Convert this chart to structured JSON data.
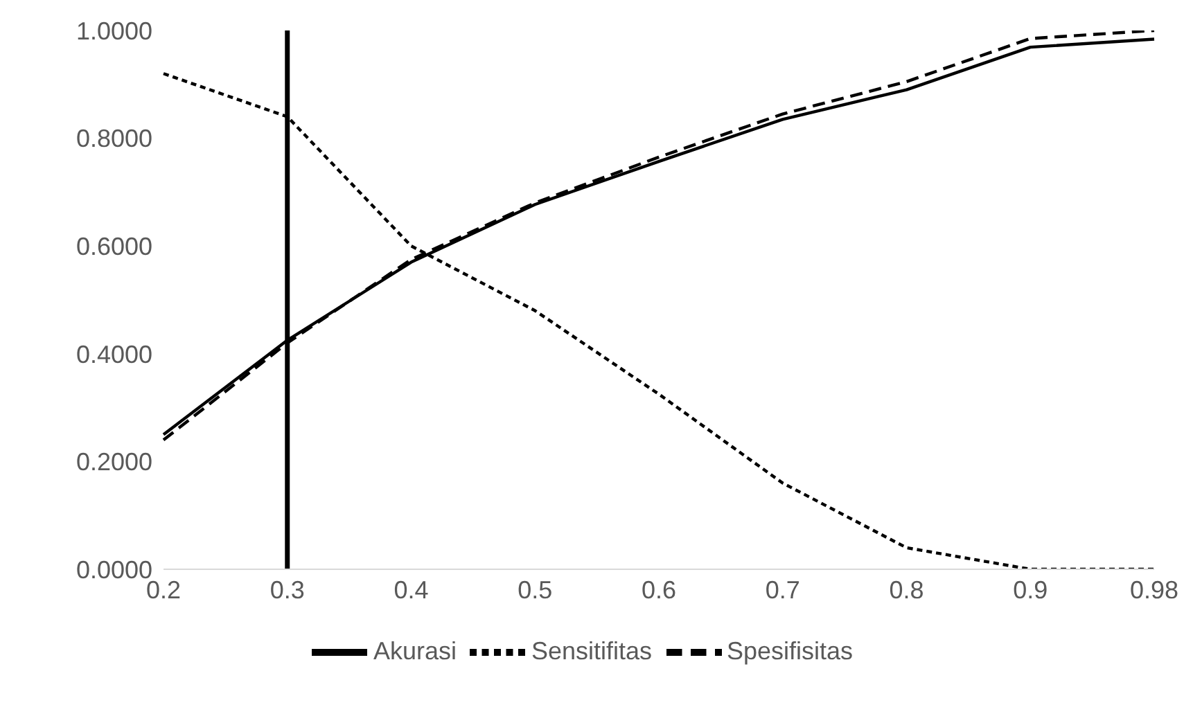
{
  "chart_data": {
    "type": "line",
    "categories": [
      "0.2",
      "0.3",
      "0.4",
      "0.5",
      "0.6",
      "0.7",
      "0.8",
      "0.9",
      "0.98"
    ],
    "series": [
      {
        "name": "Akurasi",
        "color": "#000000",
        "line_style": "solid",
        "values": [
          0.25,
          0.425,
          0.57,
          0.677,
          0.757,
          0.835,
          0.89,
          0.969,
          0.984
        ]
      },
      {
        "name": "Sensitifitas",
        "color": "#000000",
        "line_style": "dotted",
        "values": [
          0.92,
          0.84,
          0.6,
          0.48,
          0.325,
          0.16,
          0.04,
          0.0,
          0.0
        ]
      },
      {
        "name": "Spesifisitas",
        "color": "#000000",
        "line_style": "dashed",
        "values": [
          0.24,
          0.42,
          0.575,
          0.68,
          0.765,
          0.845,
          0.905,
          0.985,
          1.0
        ]
      }
    ],
    "ylim": [
      0,
      1
    ],
    "yticks": [
      {
        "value": 0,
        "label": "0.0000"
      },
      {
        "value": 0.2,
        "label": "0.2000"
      },
      {
        "value": 0.4,
        "label": "0.4000"
      },
      {
        "value": 0.6,
        "label": "0.6000"
      },
      {
        "value": 0.8,
        "label": "0.8000"
      },
      {
        "value": 1,
        "label": "1.0000"
      }
    ],
    "ref_lines": [
      {
        "axis": "x",
        "value": "0.3",
        "color": "#000000"
      }
    ],
    "grid": false,
    "legend": "bottom",
    "marker": "none"
  }
}
